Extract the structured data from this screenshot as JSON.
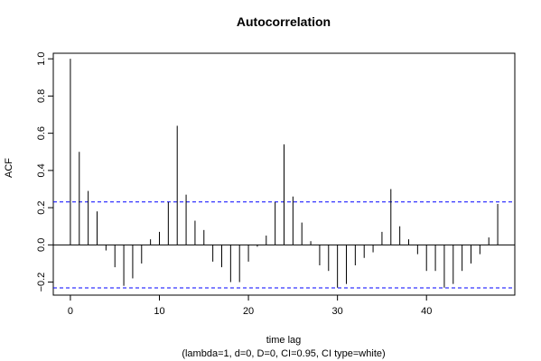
{
  "chart_data": {
    "type": "bar",
    "title": "Autocorrelation",
    "xlabel": "time lag",
    "subtitle": "(lambda=1, d=0, D=0, CI=0.95, CI type=white)",
    "ylabel": "ACF",
    "xlim": [
      -1.92,
      49.92
    ],
    "ylim": [
      -0.27,
      1.03
    ],
    "xticks": [
      0,
      10,
      20,
      30,
      40
    ],
    "yticks": [
      -0.2,
      0.0,
      0.2,
      0.4,
      0.6,
      0.8,
      1.0
    ],
    "ytick_labels": [
      "−0.2",
      "0.0",
      "0.2",
      "0.4",
      "0.6",
      "0.8",
      "1.0"
    ],
    "confidence_band": [
      -0.231,
      0.231
    ],
    "colors": {
      "bars": "#000000",
      "zero_line": "#000000",
      "confidence_band": "#0000ff"
    },
    "lags": [
      0,
      1,
      2,
      3,
      4,
      5,
      6,
      7,
      8,
      9,
      10,
      11,
      12,
      13,
      14,
      15,
      16,
      17,
      18,
      19,
      20,
      21,
      22,
      23,
      24,
      25,
      26,
      27,
      28,
      29,
      30,
      31,
      32,
      33,
      34,
      35,
      36,
      37,
      38,
      39,
      40,
      41,
      42,
      43,
      44,
      45,
      46,
      47,
      48
    ],
    "values": [
      1.0,
      0.5,
      0.29,
      0.18,
      -0.03,
      -0.12,
      -0.22,
      -0.18,
      -0.1,
      0.03,
      0.07,
      0.23,
      0.64,
      0.27,
      0.13,
      0.08,
      -0.09,
      -0.12,
      -0.2,
      -0.2,
      -0.09,
      -0.01,
      0.05,
      0.23,
      0.54,
      0.26,
      0.12,
      0.02,
      -0.11,
      -0.14,
      -0.23,
      -0.21,
      -0.11,
      -0.07,
      -0.04,
      0.07,
      0.3,
      0.1,
      0.03,
      -0.05,
      -0.14,
      -0.14,
      -0.23,
      -0.21,
      -0.14,
      -0.1,
      -0.05,
      0.04,
      0.22
    ]
  }
}
